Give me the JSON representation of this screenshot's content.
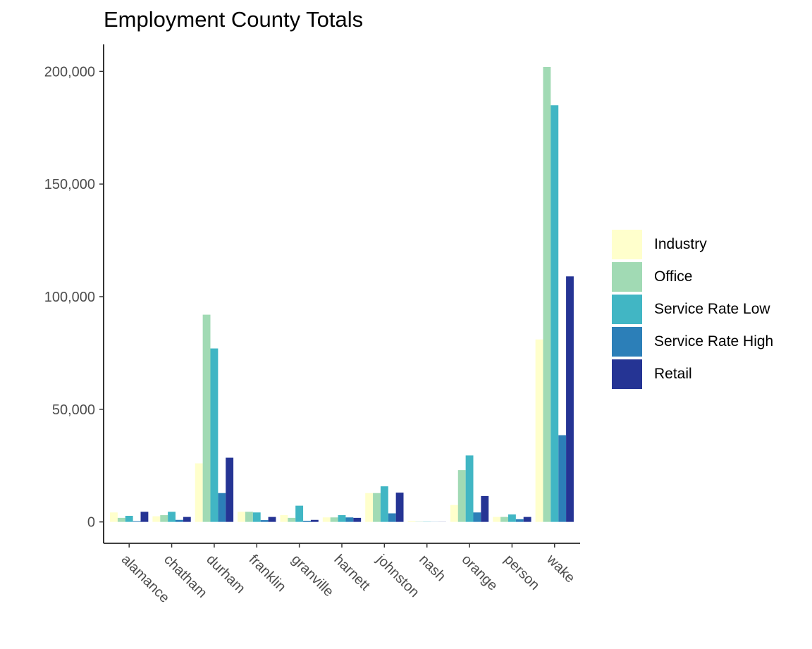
{
  "chart_data": {
    "type": "bar",
    "title": "Employment County Totals",
    "xlabel": "",
    "ylabel": "",
    "ylim": [
      -9500,
      212000
    ],
    "yticks": [
      0,
      50000,
      100000,
      150000,
      200000
    ],
    "ytick_labels": [
      "0",
      "50,000",
      "100,000",
      "150,000",
      "200,000"
    ],
    "categories": [
      "alamance",
      "chatham",
      "durham",
      "franklin",
      "granville",
      "harnett",
      "johnston",
      "nash",
      "orange",
      "person",
      "wake"
    ],
    "series": [
      {
        "name": "Industry",
        "color": "#ffffcc",
        "values": [
          4200,
          2500,
          26000,
          4500,
          3000,
          2000,
          12800,
          400,
          7500,
          2200,
          81000
        ]
      },
      {
        "name": "Office",
        "color": "#a1dab4",
        "values": [
          1800,
          3000,
          92000,
          4500,
          1800,
          2000,
          12800,
          100,
          23000,
          2200,
          202000
        ]
      },
      {
        "name": "Service Rate Low",
        "color": "#41b6c4",
        "values": [
          2700,
          4500,
          77000,
          4200,
          7200,
          3000,
          15800,
          100,
          29500,
          3300,
          185000
        ]
      },
      {
        "name": "Service Rate High",
        "color": "#2c7fb8",
        "values": [
          300,
          900,
          12800,
          800,
          500,
          2000,
          3800,
          50,
          4200,
          1200,
          38500
        ]
      },
      {
        "name": "Retail",
        "color": "#253494",
        "values": [
          4500,
          2200,
          28500,
          2200,
          900,
          1800,
          13000,
          50,
          11500,
          2200,
          109000
        ]
      }
    ],
    "grid": false,
    "legend_position": "right"
  }
}
